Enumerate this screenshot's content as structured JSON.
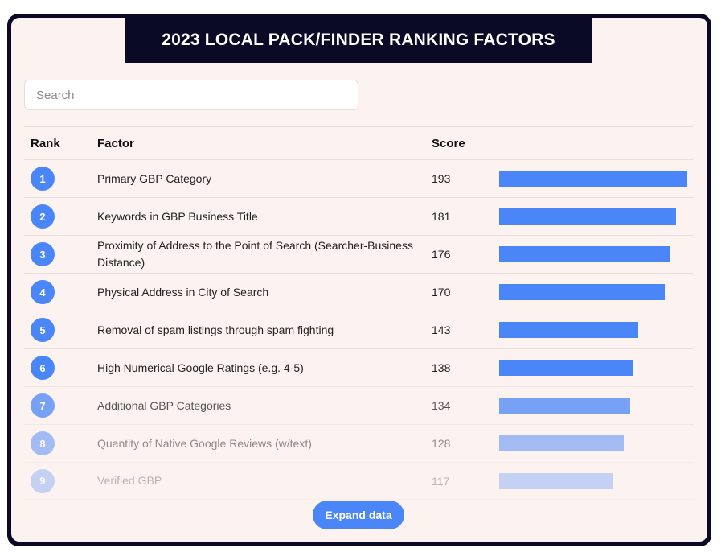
{
  "title": "2023 LOCAL PACK/FINDER RANKING FACTORS",
  "search": {
    "placeholder": "Search",
    "value": ""
  },
  "table": {
    "headers": {
      "rank": "Rank",
      "factor": "Factor",
      "score": "Score"
    },
    "rows": [
      {
        "rank": "1",
        "factor": "Primary GBP Category",
        "score": "193"
      },
      {
        "rank": "2",
        "factor": "Keywords in GBP Business Title",
        "score": "181"
      },
      {
        "rank": "3",
        "factor": "Proximity of Address to the Point of Search (Searcher-Business Distance)",
        "score": "176"
      },
      {
        "rank": "4",
        "factor": "Physical Address in City of Search",
        "score": "170"
      },
      {
        "rank": "5",
        "factor": "Removal of spam listings through spam fighting",
        "score": "143"
      },
      {
        "rank": "6",
        "factor": "High Numerical Google Ratings (e.g. 4-5)",
        "score": "138"
      },
      {
        "rank": "7",
        "factor": "Additional GBP Categories",
        "score": "134"
      },
      {
        "rank": "8",
        "factor": "Quantity of Native Google Reviews (w/text)",
        "score": "128"
      },
      {
        "rank": "9",
        "factor": "Verified GBP",
        "score": "117"
      }
    ]
  },
  "expand_button": {
    "label": "Expand data"
  },
  "colors": {
    "accent": "#4a86f7",
    "frame": "#0a0a26",
    "panel": "#fcf2f0"
  },
  "chart_data": {
    "type": "bar",
    "orientation": "horizontal",
    "title": "2023 LOCAL PACK/FINDER RANKING FACTORS",
    "categories": [
      "Primary GBP Category",
      "Keywords in GBP Business Title",
      "Proximity of Address to the Point of Search (Searcher-Business Distance)",
      "Physical Address in City of Search",
      "Removal of spam listings through spam fighting",
      "High Numerical Google Ratings (e.g. 4-5)",
      "Additional GBP Categories",
      "Quantity of Native Google Reviews (w/text)",
      "Verified GBP"
    ],
    "values": [
      193,
      181,
      176,
      170,
      143,
      138,
      134,
      128,
      117
    ],
    "xlabel": "Score",
    "ylabel": "Factor",
    "grid": false,
    "legend": null
  }
}
